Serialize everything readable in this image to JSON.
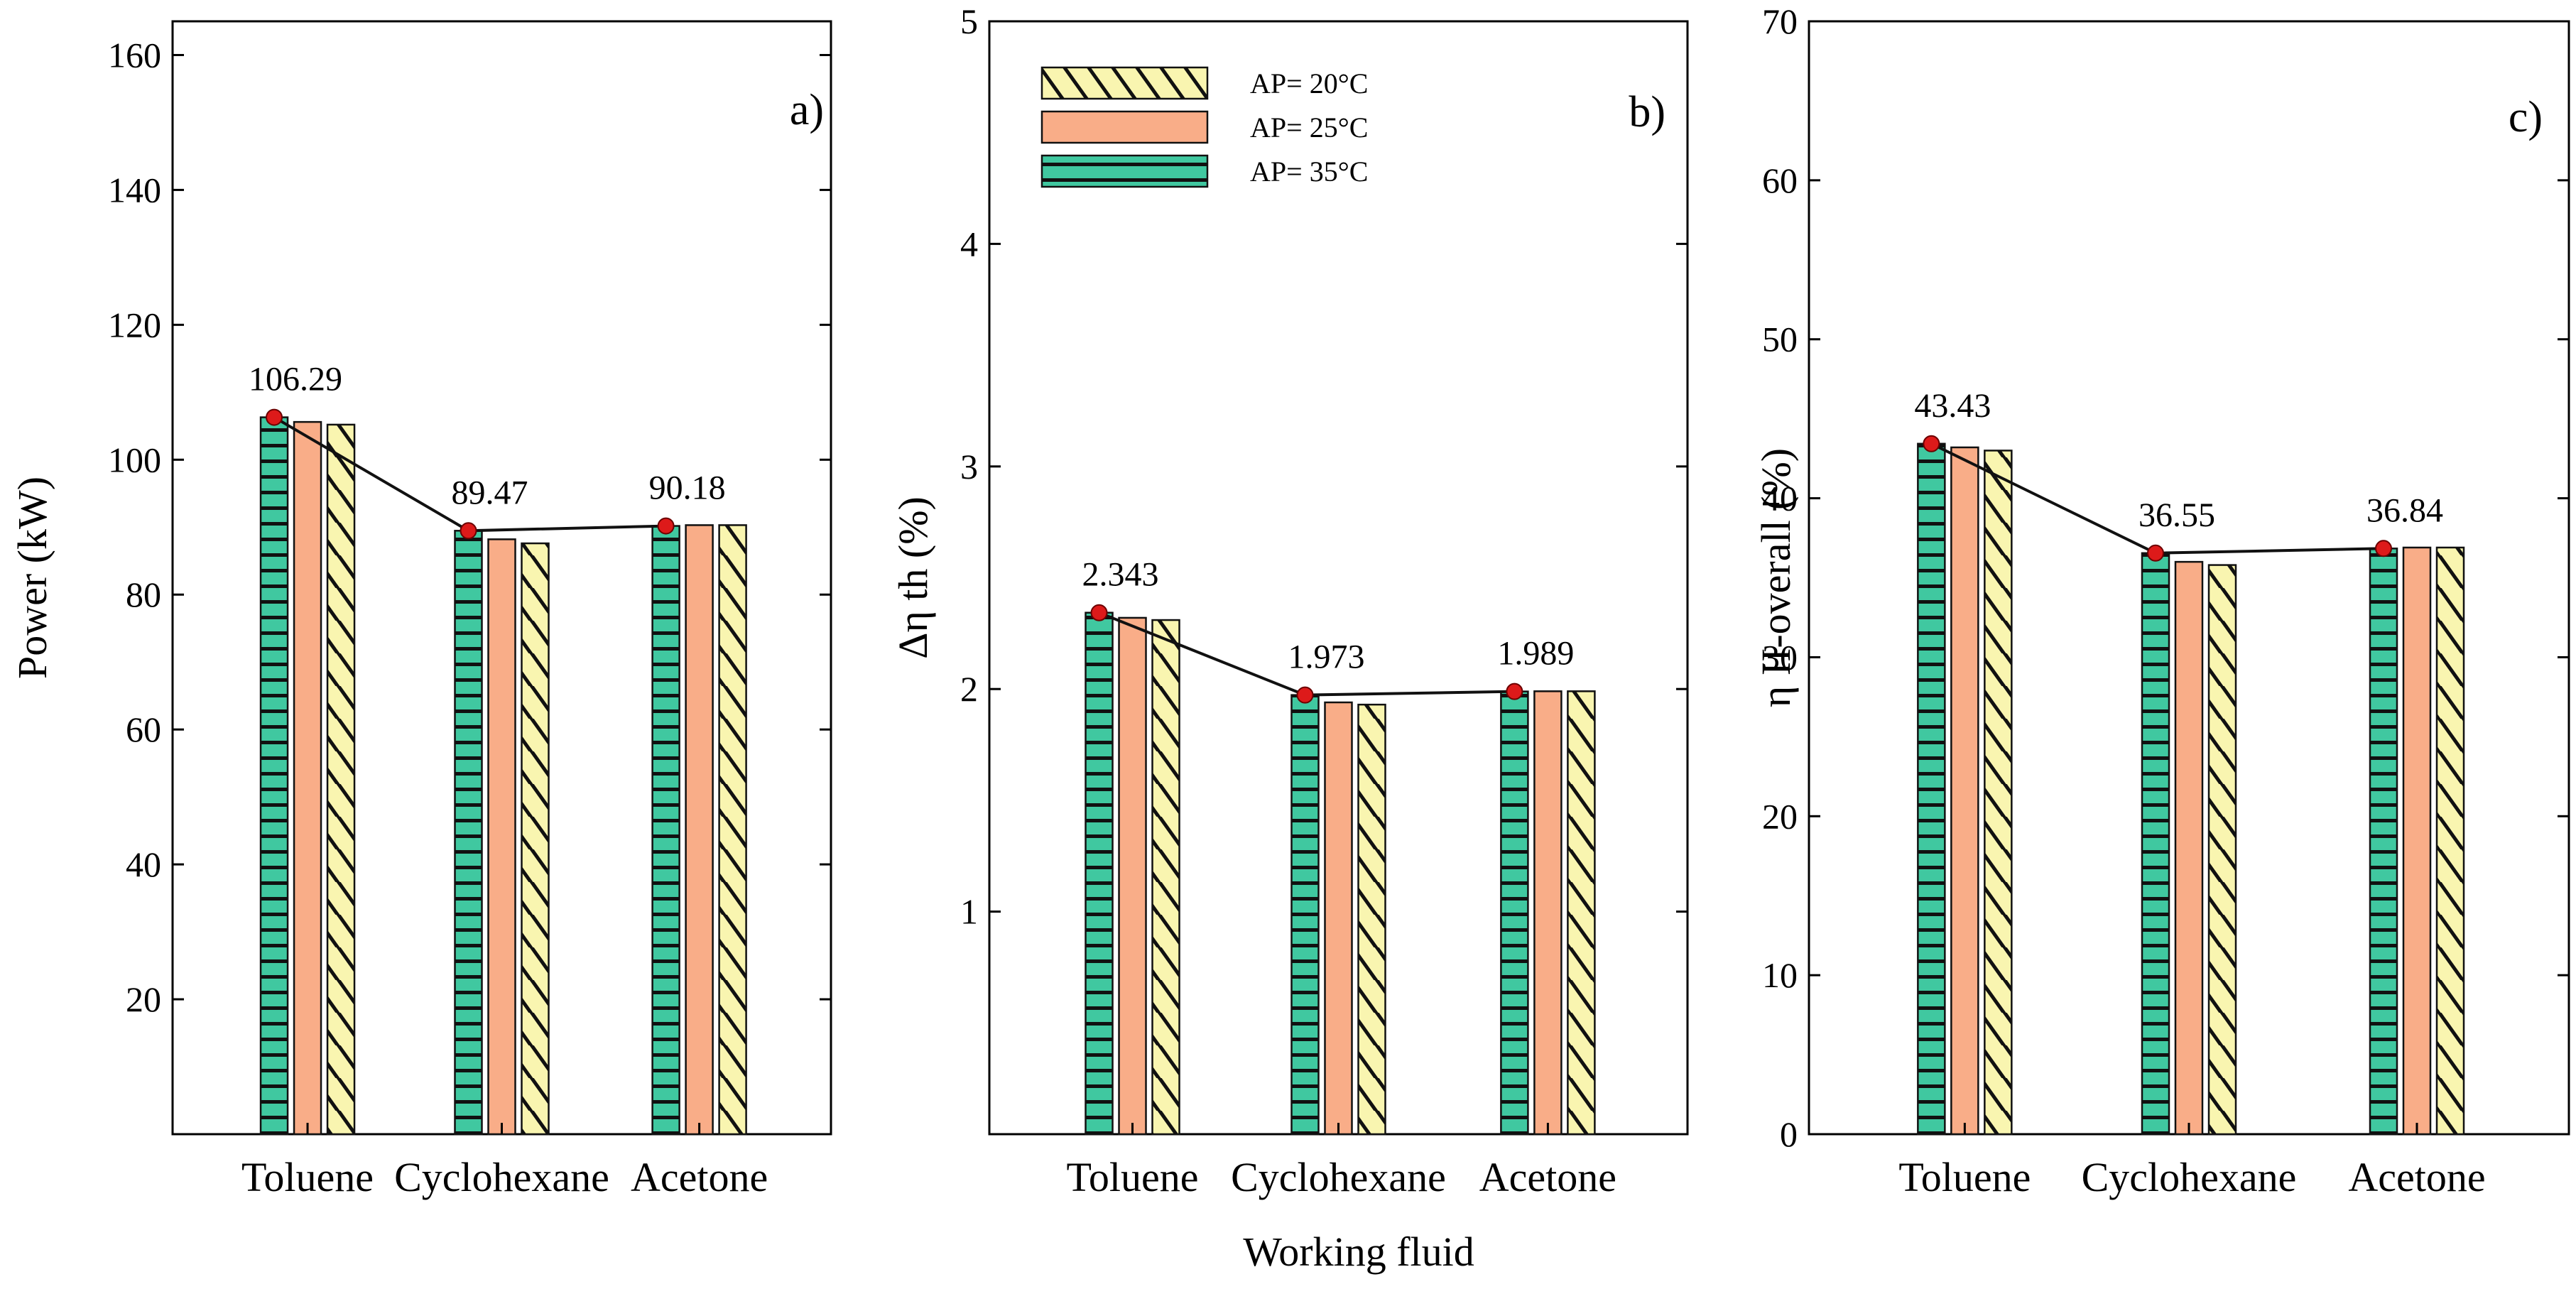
{
  "figure": {
    "shared_xlabel": "Working fluid",
    "legend": [
      {
        "label": "AP= 20°C",
        "pattern": "diagonal",
        "color": "#f9f5b0"
      },
      {
        "label": "AP= 25°C",
        "pattern": "plain",
        "color": "#f9ad88"
      },
      {
        "label": "AP= 35°C",
        "pattern": "horizontal",
        "color": "#40c8a0"
      }
    ]
  },
  "chart_data": [
    {
      "type": "bar",
      "panel_label": "a)",
      "ylabel": "Power (kW)",
      "xlabel": "",
      "categories": [
        "Toluene",
        "Cyclohexane",
        "Acetone"
      ],
      "ylim": [
        0,
        165
      ],
      "yticks": [
        20,
        40,
        60,
        80,
        100,
        120,
        140,
        160
      ],
      "series": [
        {
          "name": "AP= 35°C",
          "values": [
            106.29,
            89.47,
            90.18
          ]
        },
        {
          "name": "AP= 25°C",
          "values": [
            105.6,
            88.2,
            90.3
          ]
        },
        {
          "name": "AP= 20°C",
          "values": [
            105.2,
            87.6,
            90.3
          ]
        }
      ],
      "line_values": [
        106.29,
        89.47,
        90.18
      ],
      "data_labels": [
        "106.29",
        "89.47",
        "90.18"
      ]
    },
    {
      "type": "bar",
      "panel_label": "b)",
      "ylabel": "Δη th (%)",
      "xlabel": "Working fluid",
      "categories": [
        "Toluene",
        "Cyclohexane",
        "Acetone"
      ],
      "ylim": [
        0,
        5
      ],
      "yticks": [
        1,
        2,
        3,
        4,
        5
      ],
      "series": [
        {
          "name": "AP= 35°C",
          "values": [
            2.343,
            1.973,
            1.989
          ]
        },
        {
          "name": "AP= 25°C",
          "values": [
            2.32,
            1.94,
            1.99
          ]
        },
        {
          "name": "AP= 20°C",
          "values": [
            2.31,
            1.93,
            1.99
          ]
        }
      ],
      "line_values": [
        2.343,
        1.973,
        1.989
      ],
      "data_labels": [
        "2.343",
        "1.973",
        "1.989"
      ]
    },
    {
      "type": "bar",
      "panel_label": "c)",
      "ylabel": "η II-overall (%)",
      "xlabel": "",
      "categories": [
        "Toluene",
        "Cyclohexane",
        "Acetone"
      ],
      "ylim": [
        0,
        70
      ],
      "yticks": [
        0,
        10,
        20,
        30,
        40,
        50,
        60,
        70
      ],
      "series": [
        {
          "name": "AP= 35°C",
          "values": [
            43.43,
            36.55,
            36.84
          ]
        },
        {
          "name": "AP= 25°C",
          "values": [
            43.2,
            36.0,
            36.9
          ]
        },
        {
          "name": "AP= 20°C",
          "values": [
            43.0,
            35.8,
            36.9
          ]
        }
      ],
      "line_values": [
        43.43,
        36.55,
        36.84
      ],
      "data_labels": [
        "43.43",
        "36.55",
        "36.84"
      ]
    }
  ]
}
